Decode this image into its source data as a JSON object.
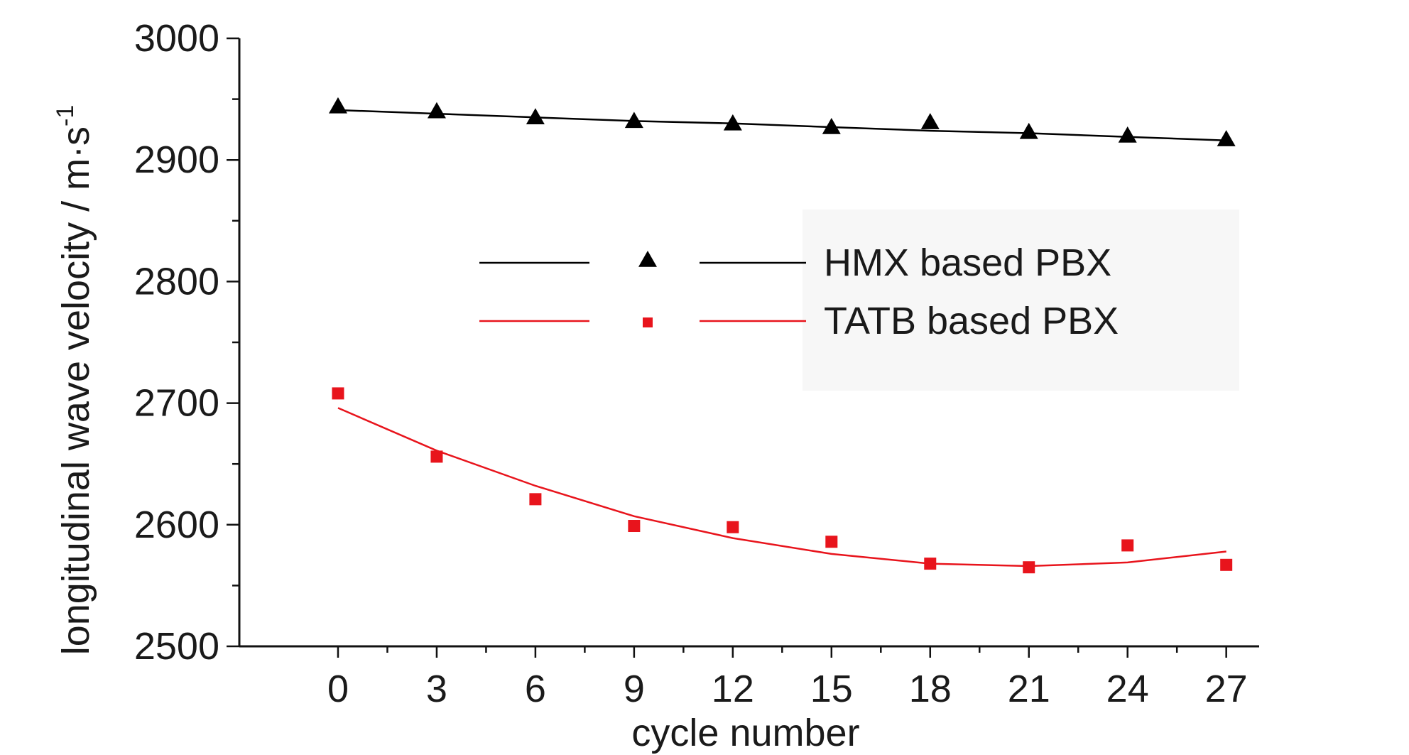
{
  "chart_data": {
    "type": "scatter",
    "title": "",
    "xlabel": "cycle number",
    "ylabel": "longitudinal wave velocity / m·s",
    "ylabel_superscript": "-1",
    "xlim": [
      -3,
      28
    ],
    "ylim": [
      2500,
      3000
    ],
    "x_ticks": [
      0,
      3,
      6,
      9,
      12,
      15,
      18,
      21,
      24,
      27
    ],
    "y_ticks": [
      2500,
      2600,
      2700,
      2800,
      2900,
      3000
    ],
    "grid": false,
    "legend_position": "right-center",
    "series": [
      {
        "name": "HMX based PBX",
        "marker": "triangle",
        "color": "#000000",
        "x": [
          0,
          3,
          6,
          9,
          12,
          15,
          18,
          21,
          24,
          27
        ],
        "y": [
          2944,
          2940,
          2935,
          2932,
          2930,
          2927,
          2931,
          2923,
          2920,
          2917
        ],
        "fit_curve": {
          "x": [
            0,
            3,
            6,
            9,
            12,
            15,
            18,
            21,
            24,
            27
          ],
          "y": [
            2941,
            2938,
            2935,
            2932,
            2930,
            2927,
            2924,
            2922,
            2919,
            2916
          ]
        }
      },
      {
        "name": "TATB based PBX",
        "marker": "square",
        "color": "#e8141c",
        "x": [
          0,
          3,
          6,
          9,
          12,
          15,
          18,
          21,
          24,
          27
        ],
        "y": [
          2708,
          2656,
          2621,
          2599,
          2598,
          2586,
          2568,
          2565,
          2583,
          2567
        ],
        "fit_curve": {
          "x": [
            0,
            3,
            6,
            9,
            12,
            15,
            18,
            21,
            24,
            27
          ],
          "y": [
            2696,
            2661,
            2632,
            2607,
            2589,
            2576,
            2568,
            2566,
            2569,
            2578
          ]
        }
      }
    ]
  }
}
